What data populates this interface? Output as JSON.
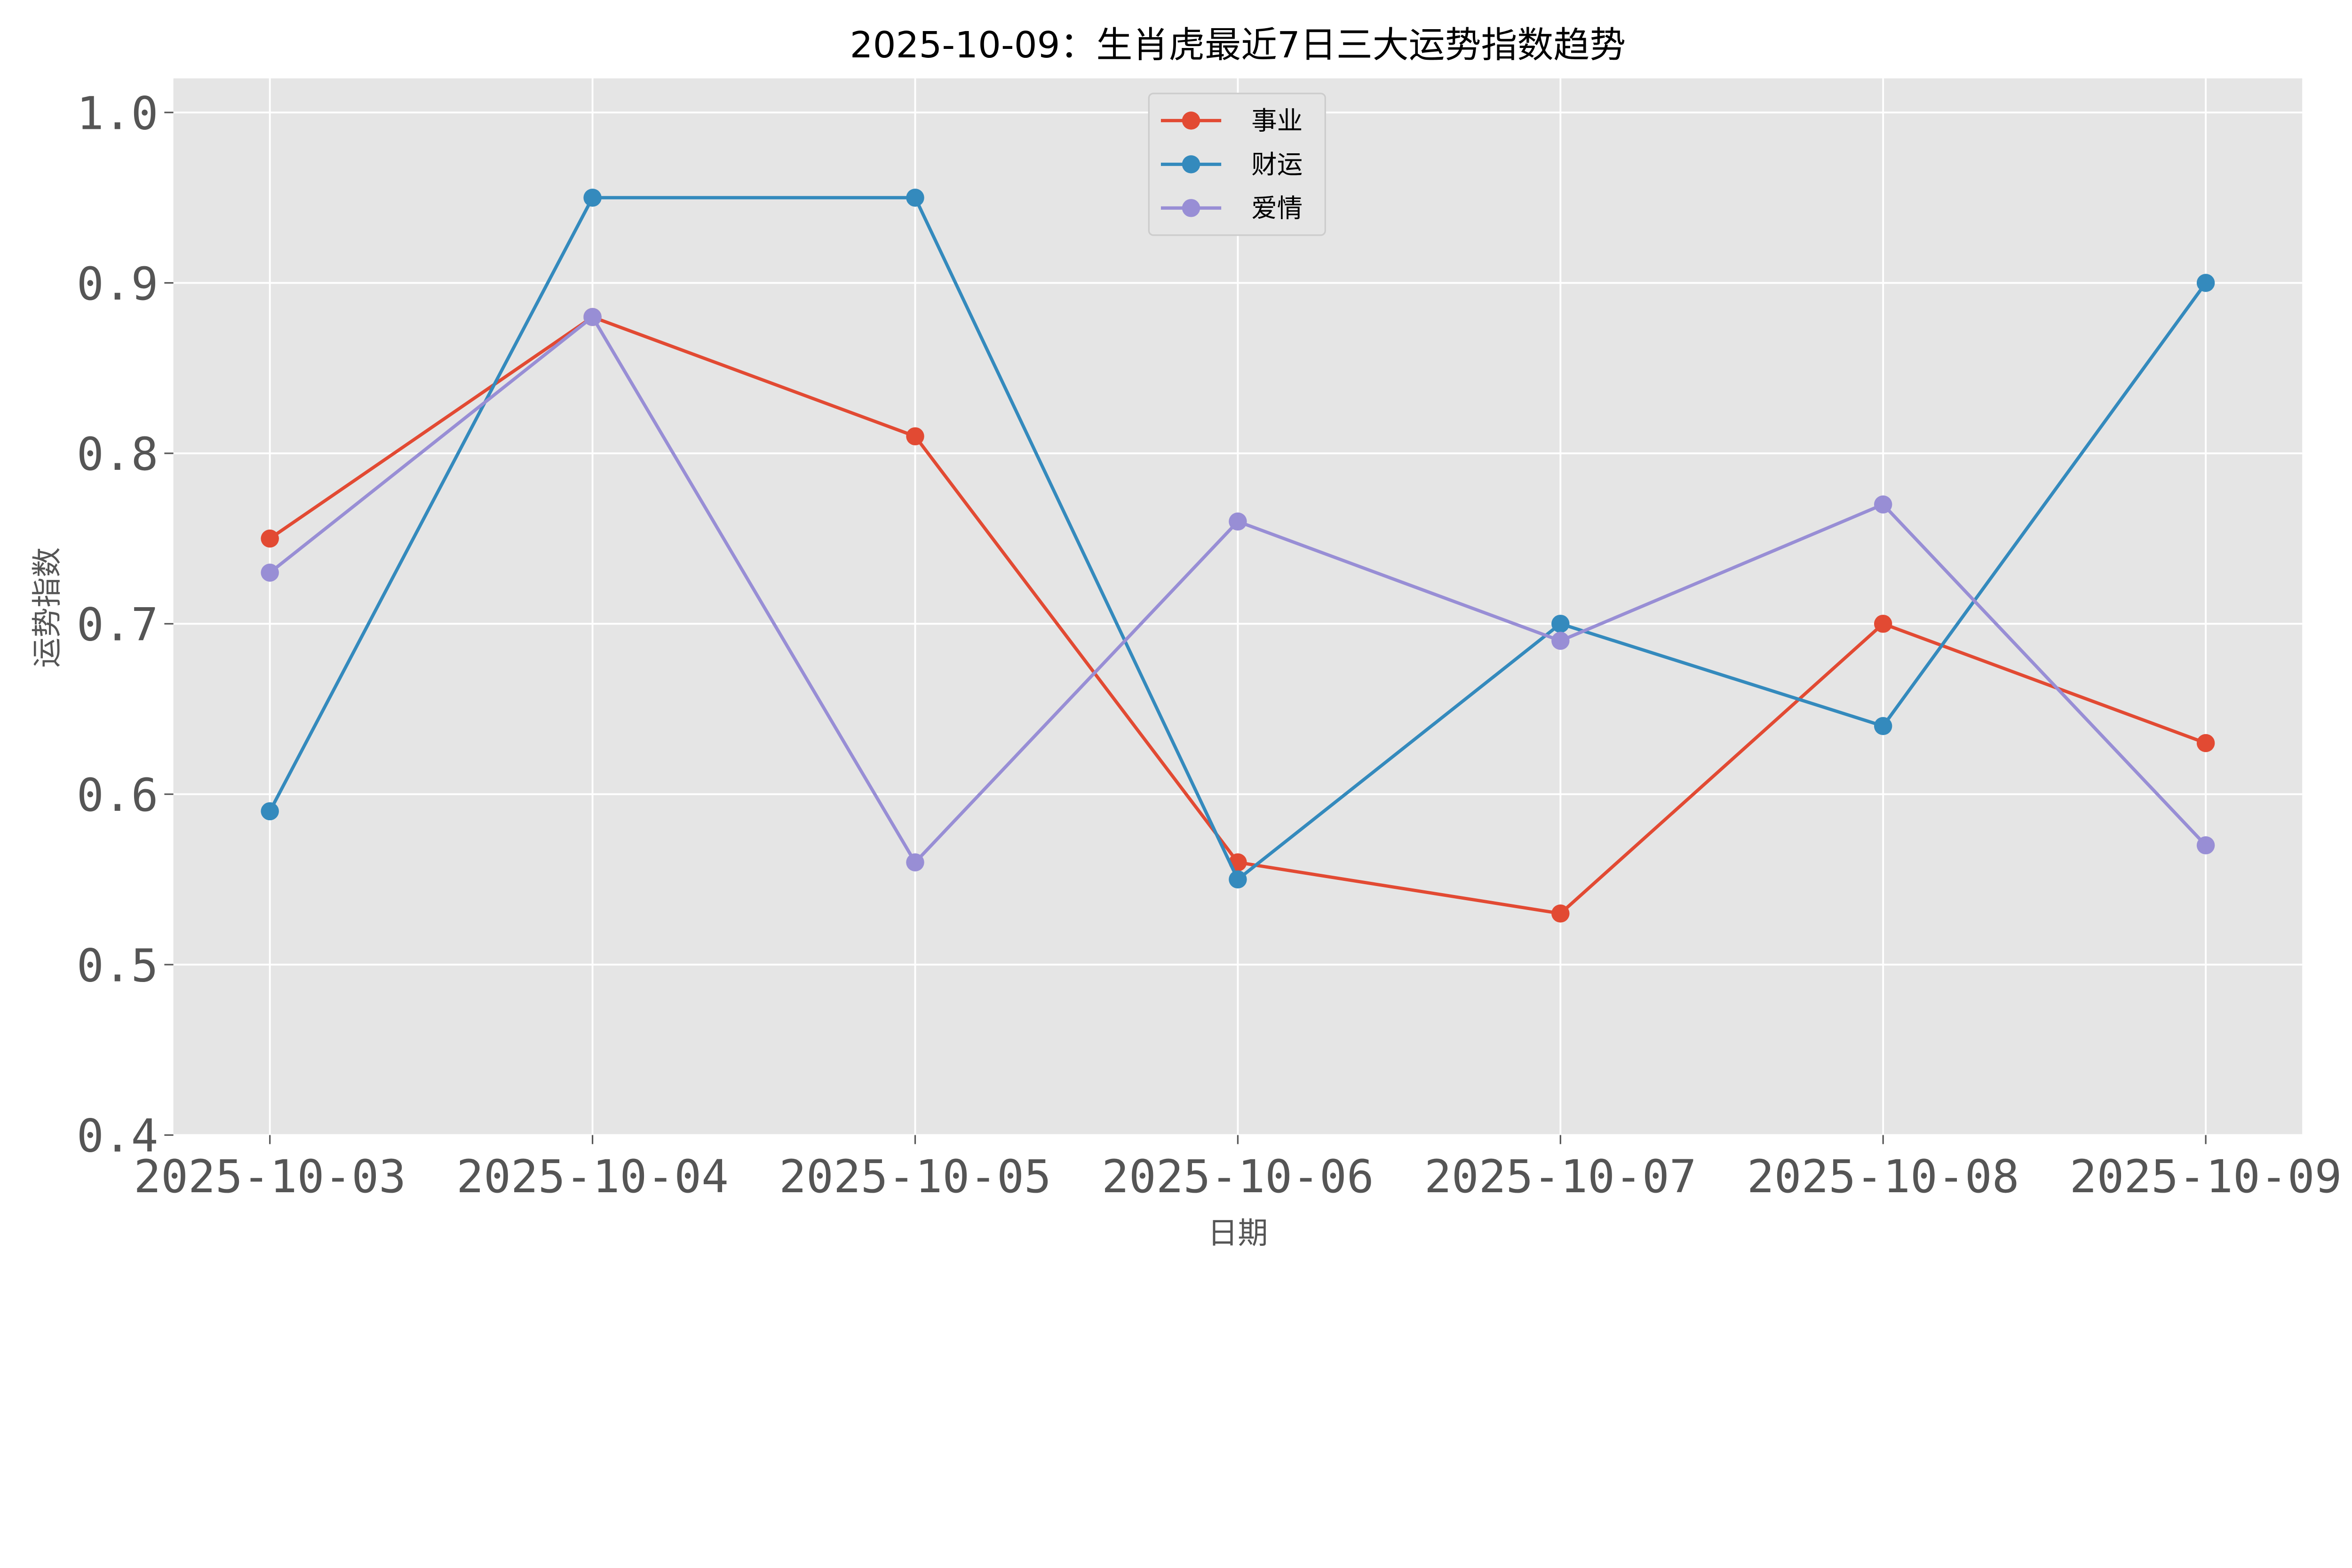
{
  "chart_data": {
    "type": "line",
    "title": "2025-10-09：生肖虎最近7日三大运势指数趋势",
    "xlabel": "日期",
    "ylabel": "运势指数",
    "categories": [
      "2025-10-03",
      "2025-10-04",
      "2025-10-05",
      "2025-10-06",
      "2025-10-07",
      "2025-10-08",
      "2025-10-09"
    ],
    "ylim": [
      0.4,
      1.02
    ],
    "yticks": [
      "0.4",
      "0.5",
      "0.6",
      "0.7",
      "0.8",
      "0.9",
      "1.0"
    ],
    "grid": true,
    "legend_position": "top-center",
    "background": "#E5E5E5",
    "series": [
      {
        "name": "事业",
        "color": "#E24A33",
        "values": [
          0.75,
          0.88,
          0.81,
          0.56,
          0.53,
          0.7,
          0.63
        ]
      },
      {
        "name": "财运",
        "color": "#348ABD",
        "values": [
          0.59,
          0.95,
          0.95,
          0.55,
          0.7,
          0.64,
          0.9
        ]
      },
      {
        "name": "爱情",
        "color": "#988ED5",
        "values": [
          0.73,
          0.88,
          0.56,
          0.76,
          0.69,
          0.77,
          0.57
        ]
      }
    ]
  }
}
